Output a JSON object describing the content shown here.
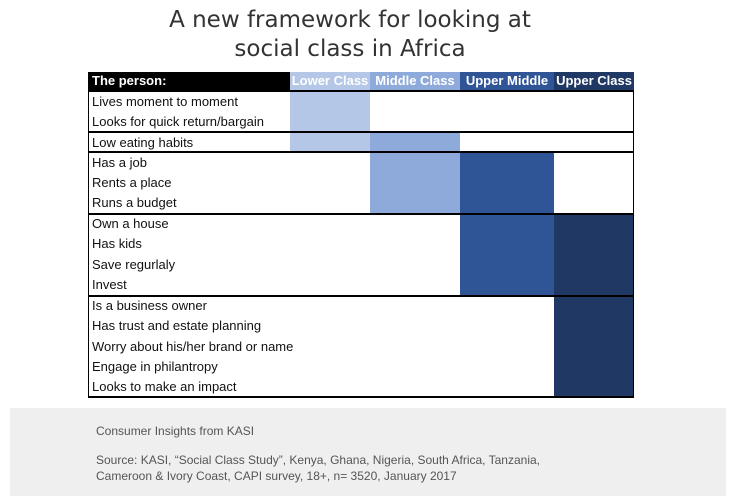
{
  "title": {
    "line1": "A new framework for looking at",
    "line2": "social class in Africa"
  },
  "table": {
    "header": {
      "person": "The person:",
      "lower": "Lower Class",
      "middle": "Middle Class",
      "upper_middle": "Upper Middle",
      "upper": "Upper Class"
    },
    "rows": [
      "Lives moment to moment",
      "Looks for quick return/bargain",
      "Low eating habits",
      "Has a job",
      "Rents a place",
      "Runs a budget",
      "Own a house",
      "Has kids",
      "Save regurlaly",
      "Invest",
      "Is a business owner",
      "Has trust and estate planning",
      "Worry about his/her brand or name",
      "Engage in philantropy",
      "Looks to make an impact"
    ],
    "colors": {
      "lower": "#b4c7e7",
      "middle": "#8eaadb",
      "upper_middle": "#2f5597",
      "upper": "#203864",
      "person_header": "#000000"
    }
  },
  "footer": {
    "attribution": "Consumer Insights from KASI",
    "source_line1": "Source: KASI, “Social Class Study”, Kenya, Ghana, Nigeria, South Africa, Tanzania,",
    "source_line2": "Cameroon & Ivory Coast, CAPI survey, 18+, n= 3520, January 2017"
  }
}
